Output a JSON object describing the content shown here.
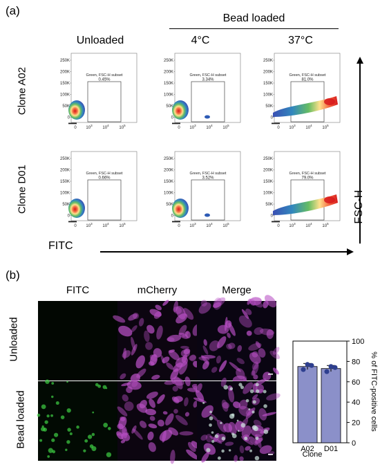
{
  "panel_a": {
    "label": "(a)",
    "bead_loaded_header": "Bead loaded",
    "columns": [
      "Unloaded",
      "4°C",
      "37°C"
    ],
    "rows": [
      "Clone A02",
      "Clone D01"
    ],
    "x_axis_label": "FITC",
    "y_axis_label": "FSC-H",
    "y_ticks": [
      "250K",
      "200K",
      "150K",
      "100K",
      "50K",
      "0"
    ],
    "x_ticks": [
      "0",
      "10",
      "10",
      "10"
    ],
    "x_tick_exponents": [
      "",
      "3",
      "4",
      "5"
    ],
    "gate_title": "Green, FSC-H subset",
    "gates": [
      {
        "row": "Clone A02",
        "condition": "Unloaded",
        "percent": "0.45%"
      },
      {
        "row": "Clone A02",
        "condition": "4°C",
        "percent": "3.34%"
      },
      {
        "row": "Clone A02",
        "condition": "37°C",
        "percent": "81.0%"
      },
      {
        "row": "Clone D01",
        "condition": "Unloaded",
        "percent": "0.66%"
      },
      {
        "row": "Clone D01",
        "condition": "4°C",
        "percent": "3.52%"
      },
      {
        "row": "Clone D01",
        "condition": "37°C",
        "percent": "79.0%"
      }
    ]
  },
  "panel_b": {
    "label": "(b)",
    "columns": [
      "FITC",
      "mCherry",
      "Merge"
    ],
    "rows": [
      "Unloaded",
      "Bead loaded"
    ]
  },
  "chart_data": {
    "type": "bar",
    "categories": [
      "A02",
      "D01"
    ],
    "values": [
      75,
      73
    ],
    "errors": [
      3,
      3
    ],
    "points": [
      [
        72,
        77,
        76
      ],
      [
        70,
        75,
        74
      ]
    ],
    "ylabel": "% of FITC-positive cells",
    "xlabel": "Clone",
    "ylim": [
      0,
      100
    ],
    "yticks": [
      "0",
      "20",
      "40",
      "60",
      "80",
      "100"
    ],
    "bar_color": "#8b90c9",
    "point_color": "#2e3f8f"
  }
}
